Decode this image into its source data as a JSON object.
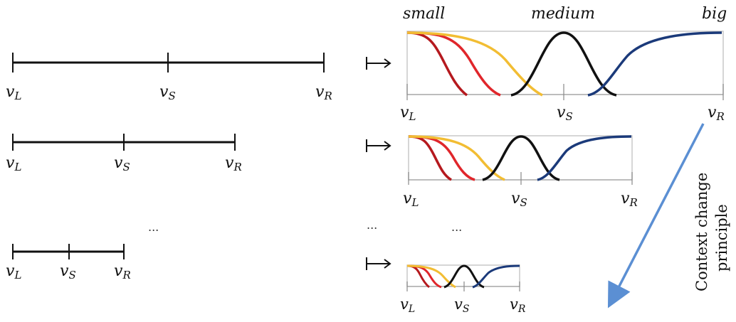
{
  "labels": {
    "left": "v",
    "left_sub": "L",
    "standard": "v",
    "standard_sub": "S",
    "right": "v",
    "right_sub": "R"
  },
  "terms": {
    "small": "small",
    "medium": "medium",
    "big": "big"
  },
  "ellipsis": "...",
  "annotation": {
    "line1": "Context change",
    "line2": "principle"
  },
  "colors": {
    "axis": "#111111",
    "red_dark": "#b5191e",
    "red": "#e0262b",
    "yellow": "#f2bd33",
    "black": "#111111",
    "navy": "#1b3a7a",
    "arrow": "#5b8fd3"
  }
}
